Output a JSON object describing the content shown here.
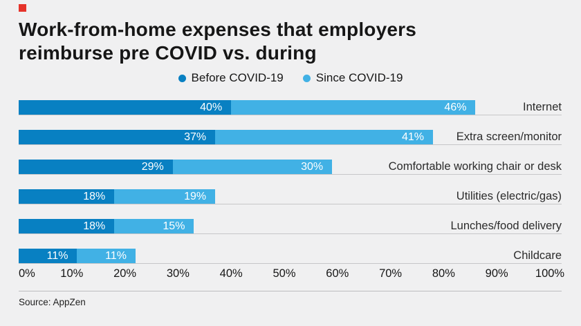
{
  "brand": {
    "accent_color": "#e5332a"
  },
  "header": {
    "title_line1": "Work-from-home expenses that employers",
    "title_line2": "reimburse pre COVID vs. during"
  },
  "chart_data": {
    "type": "bar",
    "orientation": "horizontal",
    "stacked": true,
    "title": "Work-from-home expenses that employers reimburse pre COVID vs. during",
    "categories": [
      "Internet",
      "Extra screen/monitor",
      "Comfortable working chair or desk",
      "Utilities (electric/gas)",
      "Lunches/food delivery",
      "Childcare"
    ],
    "series": [
      {
        "name": "Before COVID-19",
        "color": "#0880c2",
        "values": [
          40,
          37,
          29,
          18,
          18,
          11
        ]
      },
      {
        "name": "Since COVID-19",
        "color": "#41b1e5",
        "values": [
          46,
          41,
          30,
          19,
          15,
          11
        ]
      }
    ],
    "value_suffix": "%",
    "x_ticks": [
      0,
      10,
      20,
      30,
      40,
      50,
      60,
      70,
      80,
      90,
      100
    ],
    "x_tick_suffix": "%",
    "xlim": [
      0,
      100
    ],
    "legend_position": "top-center",
    "grid": false
  },
  "footer": {
    "source": "Source: AppZen"
  }
}
